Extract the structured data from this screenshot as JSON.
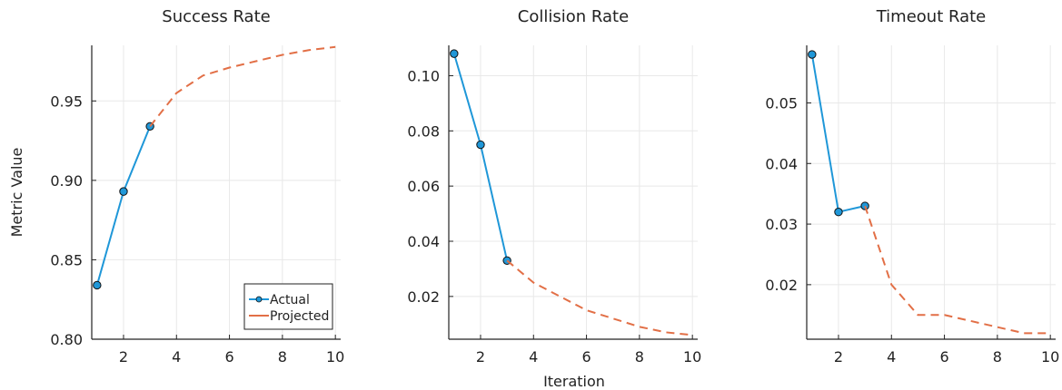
{
  "figure": {
    "ylabel": "Metric Value",
    "xlabel": "Iteration"
  },
  "legend": {
    "actual": "Actual",
    "projected": "Projected"
  },
  "colors": {
    "actual": "#1f97d8",
    "projected": "#e26f46",
    "grid": "#e8e8e8",
    "axis": "#222222"
  },
  "chart_data": [
    {
      "type": "line",
      "title": "Success Rate",
      "xlabel": "",
      "ylabel": "Metric Value",
      "xlim": [
        0.8,
        10.2
      ],
      "ylim": [
        0.8,
        0.985
      ],
      "xticks": [
        2,
        4,
        6,
        8,
        10
      ],
      "xtick_labels": [
        "2",
        "4",
        "6",
        "8",
        "10"
      ],
      "yticks": [
        0.8,
        0.85,
        0.9,
        0.95
      ],
      "ytick_labels": [
        "0.80",
        "0.85",
        "0.90",
        "0.95"
      ],
      "grid": true,
      "legend_position": "bottom-right",
      "series": [
        {
          "name": "Actual",
          "style": "solid-markers",
          "x": [
            1,
            2,
            3
          ],
          "y": [
            0.834,
            0.893,
            0.934
          ]
        },
        {
          "name": "Projected",
          "style": "dashed",
          "x": [
            3,
            4,
            5,
            6,
            7,
            8,
            9,
            10
          ],
          "y": [
            0.934,
            0.955,
            0.966,
            0.971,
            0.975,
            0.979,
            0.982,
            0.984
          ]
        }
      ]
    },
    {
      "type": "line",
      "title": "Collision Rate",
      "xlabel": "Iteration",
      "ylabel": "",
      "xlim": [
        0.8,
        10.2
      ],
      "ylim": [
        0.0045,
        0.111
      ],
      "xticks": [
        2,
        4,
        6,
        8,
        10
      ],
      "xtick_labels": [
        "2",
        "4",
        "6",
        "8",
        "10"
      ],
      "yticks": [
        0.02,
        0.04,
        0.06,
        0.08,
        0.1
      ],
      "ytick_labels": [
        "0.02",
        "0.04",
        "0.06",
        "0.08",
        "0.10"
      ],
      "grid": true,
      "series": [
        {
          "name": "Actual",
          "style": "solid-markers",
          "x": [
            1,
            2,
            3
          ],
          "y": [
            0.108,
            0.075,
            0.033
          ]
        },
        {
          "name": "Projected",
          "style": "dashed",
          "x": [
            3,
            4,
            5,
            6,
            7,
            8,
            9,
            10
          ],
          "y": [
            0.033,
            0.025,
            0.02,
            0.015,
            0.012,
            0.009,
            0.007,
            0.006
          ]
        }
      ]
    },
    {
      "type": "line",
      "title": "Timeout Rate",
      "xlabel": "",
      "ylabel": "",
      "xlim": [
        0.8,
        10.2
      ],
      "ylim": [
        0.011,
        0.0595
      ],
      "xticks": [
        2,
        4,
        6,
        8,
        10
      ],
      "xtick_labels": [
        "2",
        "4",
        "6",
        "8",
        "10"
      ],
      "yticks": [
        0.02,
        0.03,
        0.04,
        0.05
      ],
      "ytick_labels": [
        "0.02",
        "0.03",
        "0.04",
        "0.05"
      ],
      "grid": true,
      "series": [
        {
          "name": "Actual",
          "style": "solid-markers",
          "x": [
            1,
            2,
            3
          ],
          "y": [
            0.058,
            0.032,
            0.033
          ]
        },
        {
          "name": "Projected",
          "style": "dashed",
          "x": [
            3,
            4,
            5,
            6,
            7,
            8,
            9,
            10
          ],
          "y": [
            0.033,
            0.02,
            0.015,
            0.015,
            0.014,
            0.013,
            0.012,
            0.012
          ]
        }
      ]
    }
  ]
}
